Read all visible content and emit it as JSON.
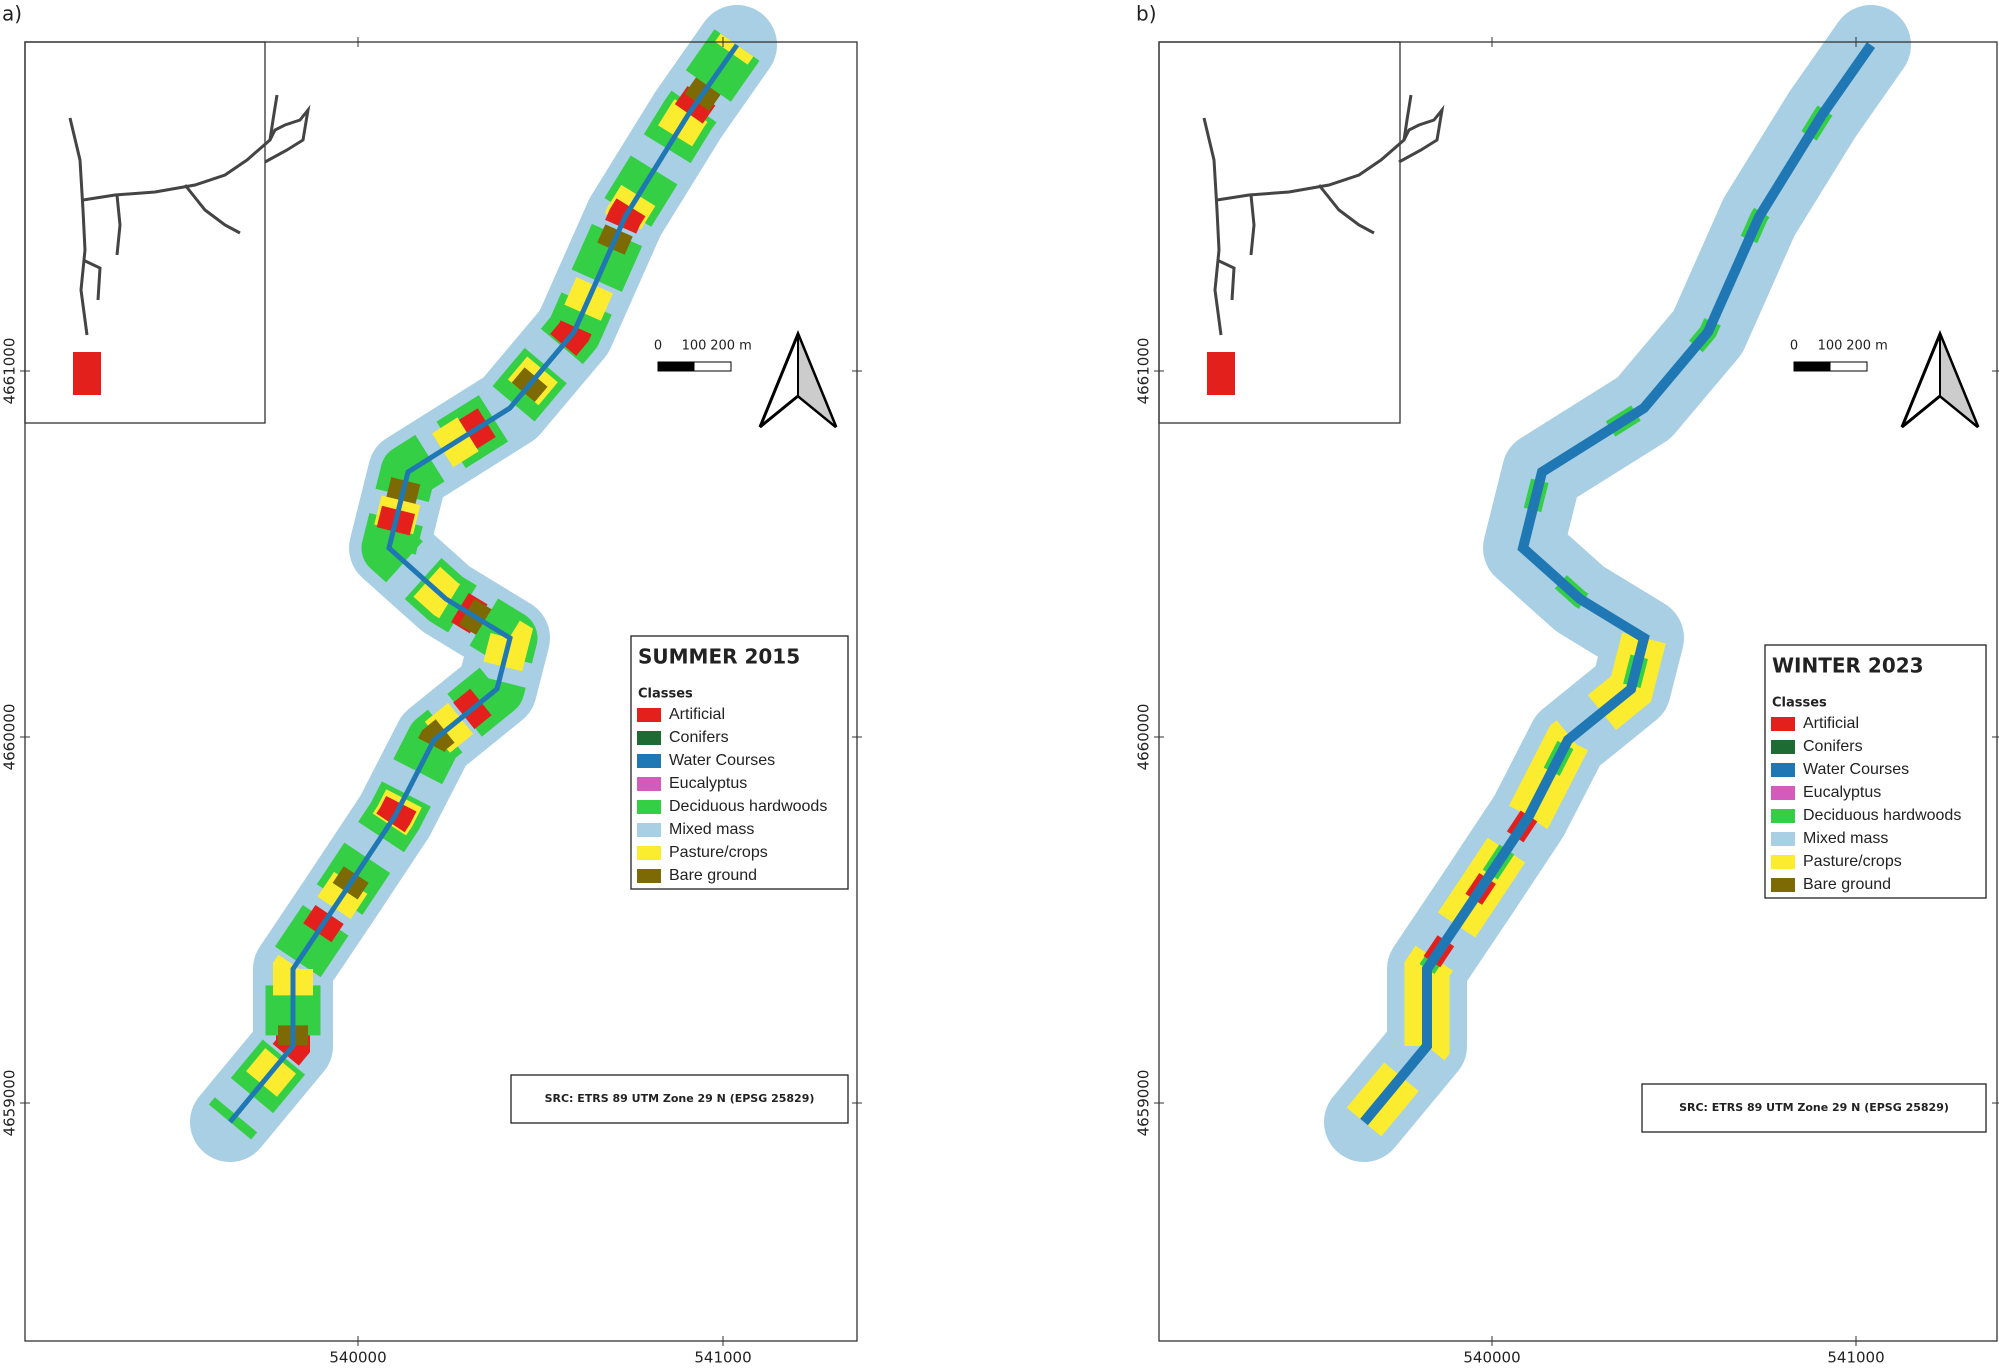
{
  "panels": [
    {
      "label": "a)",
      "title": "SUMMER 2015",
      "legend_heading": "Classes",
      "classes": [
        {
          "name": "Artificial",
          "color": "#e3201c"
        },
        {
          "name": "Conifers",
          "color": "#1e6b34"
        },
        {
          "name": "Water Courses",
          "color": "#1f78b4"
        },
        {
          "name": "Eucalyptus",
          "color": "#d35bbb"
        },
        {
          "name": "Deciduous hardwoods",
          "color": "#35cf45"
        },
        {
          "name": "Mixed mass",
          "color": "#a8cfe3"
        },
        {
          "name": "Pasture/crops",
          "color": "#fbec2f"
        },
        {
          "name": "Bare ground",
          "color": "#7d6a05"
        }
      ],
      "scale_labels": [
        "0",
        "100",
        "200 m"
      ],
      "x_ticks": [
        540000,
        541000
      ],
      "y_ticks": [
        4661000,
        4660000,
        4659000
      ],
      "crs": "SRC: ETRS 89 UTM Zone 29 N (EPSG 25829)"
    },
    {
      "label": "b)",
      "title": "WINTER 2023",
      "legend_heading": "Classes",
      "classes": [
        {
          "name": "Artificial",
          "color": "#e3201c"
        },
        {
          "name": "Conifers",
          "color": "#1e6b34"
        },
        {
          "name": "Water Courses",
          "color": "#1f78b4"
        },
        {
          "name": "Eucalyptus",
          "color": "#d35bbb"
        },
        {
          "name": "Deciduous hardwoods",
          "color": "#35cf45"
        },
        {
          "name": "Mixed mass",
          "color": "#a8cfe3"
        },
        {
          "name": "Pasture/crops",
          "color": "#fbec2f"
        },
        {
          "name": "Bare ground",
          "color": "#7d6a05"
        }
      ],
      "scale_labels": [
        "0",
        "100",
        "200 m"
      ],
      "x_ticks": [
        540000,
        541000
      ],
      "y_ticks": [
        4661000,
        4660000,
        4659000
      ],
      "crs": "SRC: ETRS 89 UTM Zone 29 N (EPSG 25829)"
    }
  ]
}
